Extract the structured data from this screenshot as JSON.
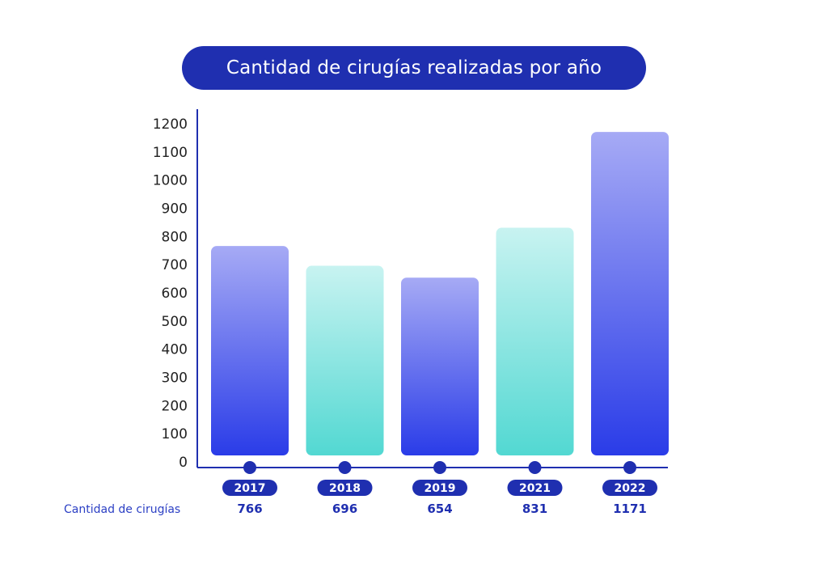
{
  "chart_data": {
    "type": "bar",
    "title": "Cantidad de cirugías realizadas por año",
    "categories": [
      "2017",
      "2018",
      "2019",
      "2021",
      "2022"
    ],
    "series": [
      {
        "name": "Cantidad de cirugías",
        "values": [
          766,
          696,
          654,
          831,
          1171
        ]
      }
    ],
    "ylim": [
      0,
      1200
    ],
    "yticks": [
      0,
      100,
      200,
      300,
      400,
      500,
      600,
      700,
      800,
      900,
      1000,
      1100,
      1200
    ],
    "grid": false,
    "bar_styles": [
      "blue",
      "teal",
      "blue",
      "teal",
      "blue"
    ],
    "colors": {
      "title_bg": "#1f2fb0",
      "axis": "#1f2fb0",
      "blue_top": "#a6aaf5",
      "blue_bottom": "#2a3ce8",
      "teal_top": "#c8f3f1",
      "teal_bottom": "#52d8d2",
      "pill": "#1f2fb0",
      "value_text": "#1f2fb0"
    }
  }
}
